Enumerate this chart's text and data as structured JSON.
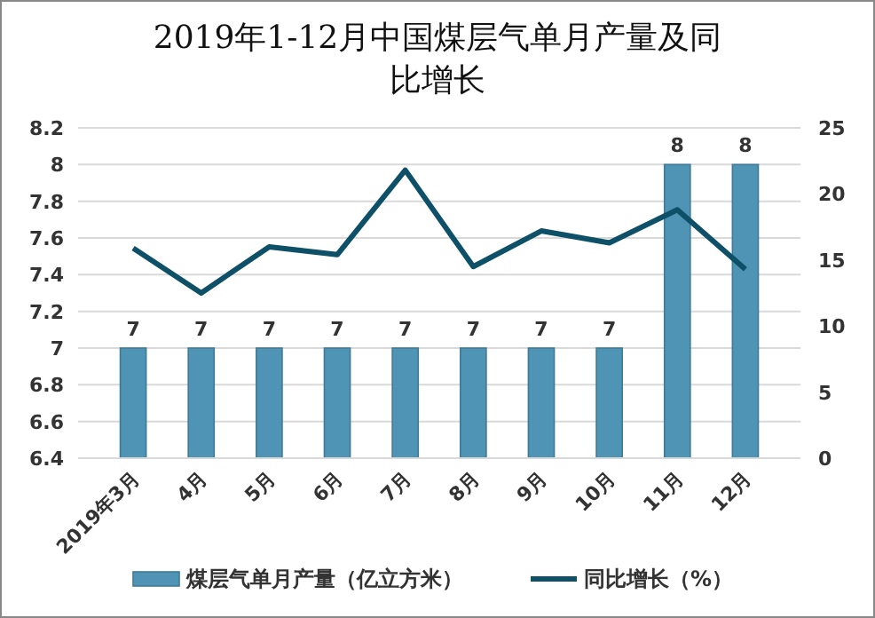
{
  "chart_data": {
    "type": "bar",
    "title": "2019年1-12月中国煤层气单月产量及同比增长",
    "categories": [
      "2019年3月",
      "4月",
      "5月",
      "6月",
      "7月",
      "8月",
      "9月",
      "10月",
      "11月",
      "12月"
    ],
    "series": [
      {
        "name": "煤层气单月产量（亿立方米）",
        "color": "#4f94b4",
        "values": [
          7,
          7,
          7,
          7,
          7,
          7,
          7,
          7,
          8,
          8
        ],
        "value_labels": [
          "7",
          "7",
          "7",
          "7",
          "7",
          "7",
          "7",
          "7",
          "8",
          "8"
        ]
      },
      {
        "name": "同比增长（%）",
        "type": "line",
        "axis": "y2",
        "color": "#0e5068",
        "values": [
          15.9,
          12.5,
          16.0,
          15.4,
          21.8,
          14.5,
          17.2,
          16.3,
          18.8,
          14.3
        ]
      }
    ],
    "ylim": [
      6.4,
      8.2
    ],
    "yticks": [
      6.4,
      6.6,
      6.8,
      7,
      7.2,
      7.4,
      7.6,
      7.8,
      8,
      8.2
    ],
    "y2lim": [
      0,
      25
    ],
    "y2ticks": [
      0,
      5,
      10,
      15,
      20,
      25
    ],
    "grid": "y",
    "legend": "bottom",
    "marker": "none"
  }
}
